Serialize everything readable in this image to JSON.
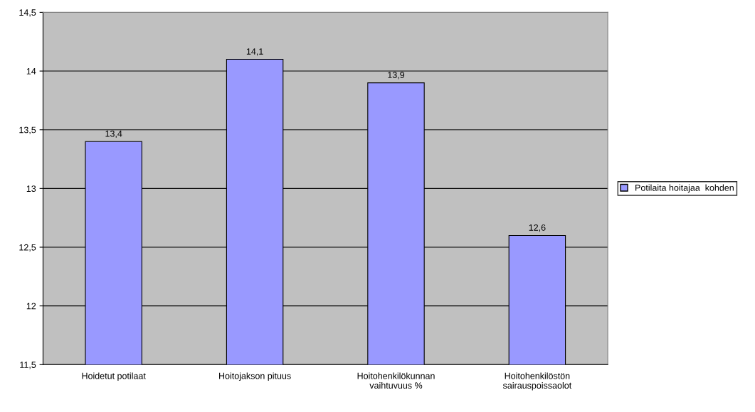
{
  "chart_data": {
    "type": "bar",
    "categories": [
      "Hoidetut potilaat",
      "Hoitojakson pituus",
      "Hoitohenkilökunnan\nvaihtuvuus %",
      "Hoitohenkilöstön\nsairauspoissaolot"
    ],
    "series": [
      {
        "name": "Potilaita hoitajaa  kohden",
        "color": "#9999ff",
        "values": [
          13.4,
          14.1,
          13.9,
          12.6
        ],
        "value_labels": [
          "13,4",
          "14,1",
          "13,9",
          "12,6"
        ]
      }
    ],
    "ylim": [
      11.5,
      14.5
    ],
    "yticks": [
      {
        "value": 11.5,
        "label": "11,5"
      },
      12,
      {
        "value": 12.5,
        "label": "12,5"
      },
      13,
      {
        "value": 13.5,
        "label": "13,5"
      },
      14,
      {
        "value": 14.5,
        "label": "14,5"
      }
    ],
    "grid": "y",
    "legend": "right"
  }
}
